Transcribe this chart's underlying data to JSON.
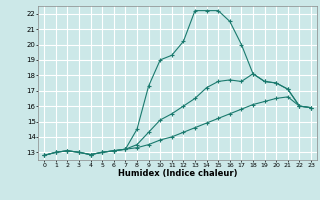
{
  "xlabel": "Humidex (Indice chaleur)",
  "xlim": [
    -0.5,
    23.5
  ],
  "ylim": [
    12.5,
    22.5
  ],
  "xticks": [
    0,
    1,
    2,
    3,
    4,
    5,
    6,
    7,
    8,
    9,
    10,
    11,
    12,
    13,
    14,
    15,
    16,
    17,
    18,
    19,
    20,
    21,
    22,
    23
  ],
  "yticks": [
    13,
    14,
    15,
    16,
    17,
    18,
    19,
    20,
    21,
    22
  ],
  "bg_color": "#cce8e8",
  "line_color": "#1a7a6e",
  "grid_color": "#ffffff",
  "line1_x": [
    0,
    1,
    2,
    3,
    4,
    5,
    6,
    7,
    8,
    9,
    10,
    11,
    12,
    13,
    14,
    15,
    16,
    17,
    18,
    19,
    20,
    21,
    22,
    23
  ],
  "line1_y": [
    12.8,
    13.0,
    13.1,
    13.0,
    12.85,
    13.0,
    13.1,
    13.2,
    13.3,
    13.5,
    13.8,
    14.0,
    14.3,
    14.6,
    14.9,
    15.2,
    15.5,
    15.8,
    16.1,
    16.3,
    16.5,
    16.6,
    16.0,
    15.9
  ],
  "line2_x": [
    0,
    1,
    2,
    3,
    4,
    5,
    6,
    7,
    8,
    9,
    10,
    11,
    12,
    13,
    14,
    15,
    16,
    17,
    18,
    19,
    20,
    21,
    22,
    23
  ],
  "line2_y": [
    12.8,
    13.0,
    13.1,
    13.0,
    12.85,
    13.0,
    13.1,
    13.2,
    13.5,
    14.3,
    15.1,
    15.5,
    16.0,
    16.5,
    17.2,
    17.6,
    17.7,
    17.6,
    18.1,
    17.6,
    17.5,
    17.1,
    16.0,
    15.9
  ],
  "line3_x": [
    0,
    1,
    2,
    3,
    4,
    5,
    6,
    7,
    8,
    9,
    10,
    11,
    12,
    13,
    14,
    15,
    16,
    17,
    18,
    19,
    20,
    21,
    22,
    23
  ],
  "line3_y": [
    12.8,
    13.0,
    13.1,
    13.0,
    12.85,
    13.0,
    13.1,
    13.2,
    14.5,
    17.3,
    19.0,
    19.3,
    20.2,
    22.2,
    22.2,
    22.2,
    21.5,
    20.0,
    18.1,
    17.6,
    17.5,
    17.1,
    16.0,
    15.9
  ]
}
